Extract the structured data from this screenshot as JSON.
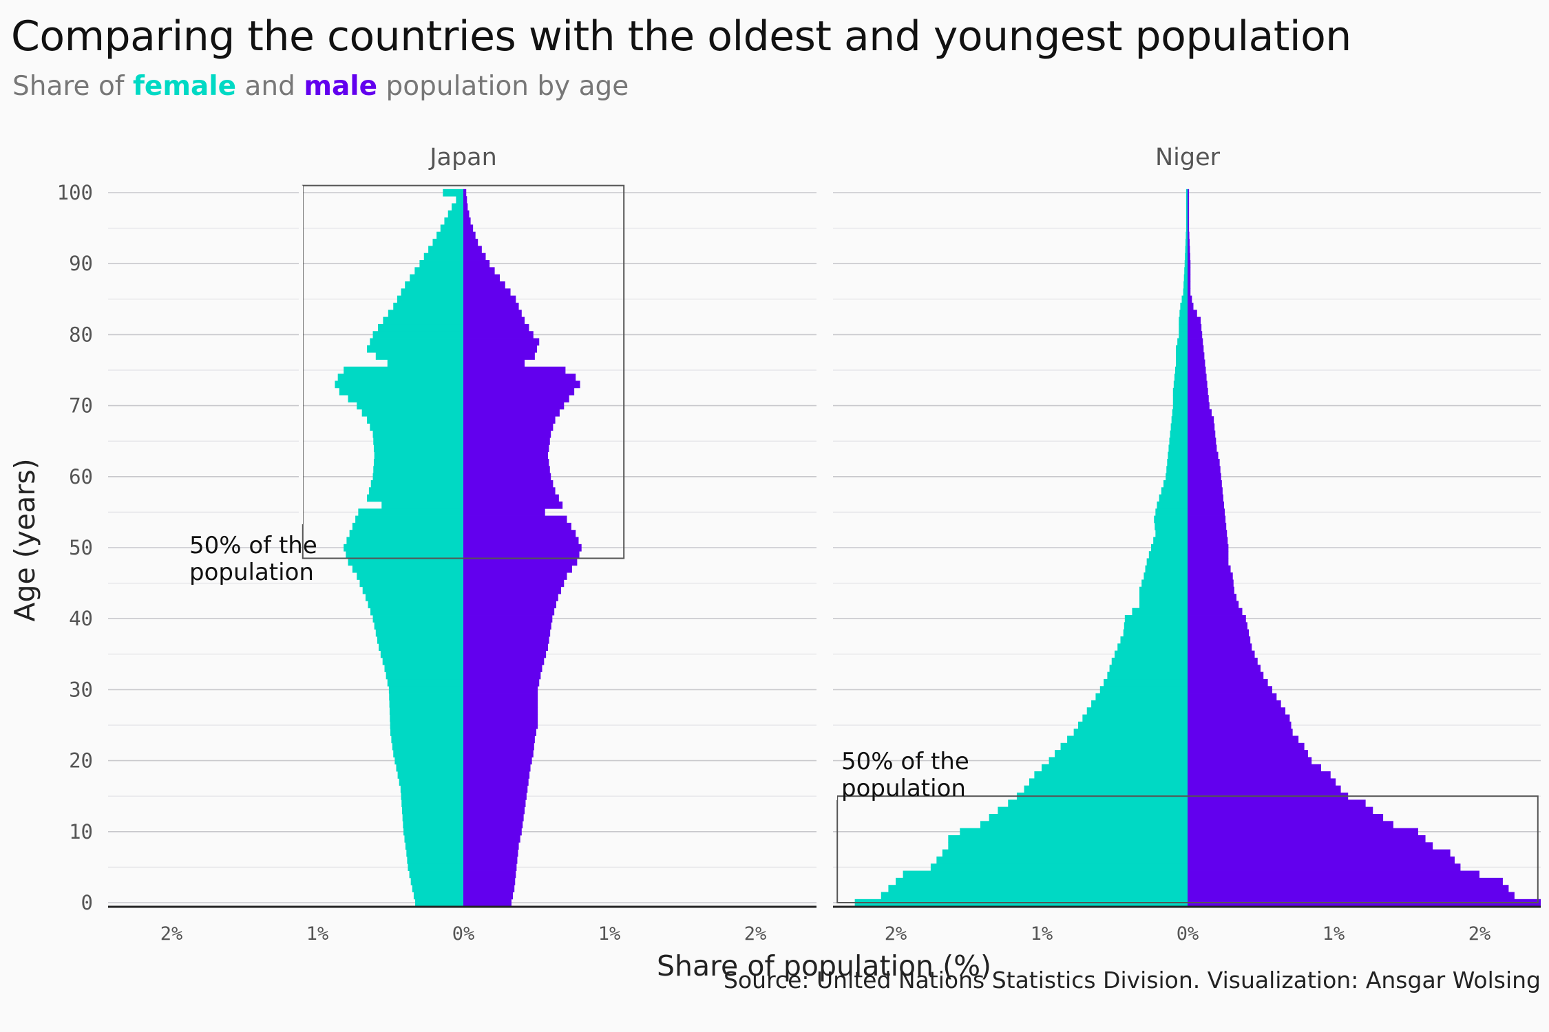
{
  "header": {
    "title": "Comparing the countries with the oldest and youngest population",
    "subtitle_prefix": "Share of ",
    "subtitle_female": "female",
    "subtitle_and": " and ",
    "subtitle_male": "male",
    "subtitle_suffix": " population by age"
  },
  "footer": {
    "source": "Source: United Nations Statistics Division. Visualization: Ansgar Wolsing"
  },
  "colors": {
    "female": "#00D9C4",
    "male": "#6200EE",
    "grid": "#c8c8cc",
    "annotation": "#555555"
  },
  "chart_data": [
    {
      "type": "bar",
      "orientation": "horizontal-pyramid",
      "facet": "Japan",
      "xlabel": "Share of population (%)",
      "ylabel": "Age (years)",
      "xlim": [
        -2.4,
        2.4
      ],
      "ylim": [
        0,
        100
      ],
      "x_ticks": [
        -2,
        -1,
        0,
        1,
        2
      ],
      "x_tick_labels": [
        "2%",
        "1%",
        "0%",
        "1%",
        "2%"
      ],
      "y_ticks": [
        0,
        10,
        20,
        30,
        40,
        50,
        60,
        70,
        80,
        90,
        100
      ],
      "grid": true,
      "annotation": {
        "text_line1": "50% of the",
        "text_line2": "population",
        "age_from": 48.5,
        "age_to": 101,
        "x_from": -1.1,
        "x_to": 1.1
      },
      "female_anchors": [
        [
          0,
          0.33
        ],
        [
          1,
          0.34
        ],
        [
          2,
          0.35
        ],
        [
          3,
          0.36
        ],
        [
          4,
          0.37
        ],
        [
          5,
          0.38
        ],
        [
          7,
          0.39
        ],
        [
          10,
          0.41
        ],
        [
          13,
          0.42
        ],
        [
          16,
          0.43
        ],
        [
          19,
          0.46
        ],
        [
          21,
          0.48
        ],
        [
          24,
          0.5
        ],
        [
          30,
          0.51
        ],
        [
          33,
          0.54
        ],
        [
          36,
          0.58
        ],
        [
          40,
          0.62
        ],
        [
          43,
          0.67
        ],
        [
          46,
          0.73
        ],
        [
          48,
          0.79
        ],
        [
          50,
          0.82
        ],
        [
          52,
          0.78
        ],
        [
          55,
          0.72
        ],
        [
          56,
          0.56
        ],
        [
          57,
          0.66
        ],
        [
          60,
          0.62
        ],
        [
          63,
          0.61
        ],
        [
          66,
          0.62
        ],
        [
          68,
          0.66
        ],
        [
          70,
          0.73
        ],
        [
          72,
          0.85
        ],
        [
          73,
          0.88
        ],
        [
          74,
          0.86
        ],
        [
          75,
          0.82
        ],
        [
          76,
          0.52
        ],
        [
          77,
          0.6
        ],
        [
          78,
          0.66
        ],
        [
          80,
          0.62
        ],
        [
          82,
          0.55
        ],
        [
          84,
          0.48
        ],
        [
          87,
          0.4
        ],
        [
          90,
          0.3
        ],
        [
          93,
          0.21
        ],
        [
          96,
          0.13
        ],
        [
          98,
          0.08
        ],
        [
          99,
          0.05
        ],
        [
          100,
          0.14
        ]
      ],
      "male_anchors": [
        [
          0,
          0.33
        ],
        [
          2,
          0.35
        ],
        [
          4,
          0.36
        ],
        [
          6,
          0.37
        ],
        [
          8,
          0.38
        ],
        [
          10,
          0.4
        ],
        [
          13,
          0.42
        ],
        [
          16,
          0.44
        ],
        [
          19,
          0.46
        ],
        [
          21,
          0.48
        ],
        [
          23,
          0.49
        ],
        [
          25,
          0.51
        ],
        [
          30,
          0.51
        ],
        [
          33,
          0.54
        ],
        [
          36,
          0.58
        ],
        [
          40,
          0.61
        ],
        [
          43,
          0.65
        ],
        [
          46,
          0.71
        ],
        [
          48,
          0.78
        ],
        [
          50,
          0.81
        ],
        [
          52,
          0.77
        ],
        [
          54,
          0.71
        ],
        [
          55,
          0.56
        ],
        [
          56,
          0.68
        ],
        [
          58,
          0.63
        ],
        [
          60,
          0.6
        ],
        [
          63,
          0.58
        ],
        [
          66,
          0.6
        ],
        [
          68,
          0.63
        ],
        [
          70,
          0.69
        ],
        [
          72,
          0.76
        ],
        [
          73,
          0.8
        ],
        [
          74,
          0.77
        ],
        [
          75,
          0.7
        ],
        [
          76,
          0.42
        ],
        [
          77,
          0.49
        ],
        [
          79,
          0.52
        ],
        [
          80,
          0.48
        ],
        [
          82,
          0.42
        ],
        [
          85,
          0.36
        ],
        [
          88,
          0.25
        ],
        [
          90,
          0.18
        ],
        [
          93,
          0.1
        ],
        [
          96,
          0.05
        ],
        [
          98,
          0.03
        ],
        [
          100,
          0.02
        ]
      ]
    },
    {
      "type": "bar",
      "orientation": "horizontal-pyramid",
      "facet": "Niger",
      "xlabel": "Share of population (%)",
      "ylabel": "Age (years)",
      "xlim": [
        -2.4,
        2.4
      ],
      "ylim": [
        0,
        100
      ],
      "x_ticks": [
        -2,
        -1,
        0,
        1,
        2
      ],
      "x_tick_labels": [
        "2%",
        "1%",
        "0%",
        "1%",
        "2%"
      ],
      "y_ticks": [
        0,
        10,
        20,
        30,
        40,
        50,
        60,
        70,
        80,
        90,
        100
      ],
      "grid": true,
      "annotation": {
        "text_line1": "50% of the",
        "text_line2": "population",
        "age_from": 0,
        "age_to": 15,
        "x_from": -2.4,
        "x_to": 2.4
      },
      "female_anchors": [
        [
          0,
          2.28
        ],
        [
          1,
          2.1
        ],
        [
          2,
          2.05
        ],
        [
          3,
          2.0
        ],
        [
          4,
          1.95
        ],
        [
          5,
          1.76
        ],
        [
          6,
          1.72
        ],
        [
          7,
          1.68
        ],
        [
          8,
          1.64
        ],
        [
          9,
          1.64
        ],
        [
          10,
          1.56
        ],
        [
          11,
          1.42
        ],
        [
          12,
          1.36
        ],
        [
          13,
          1.3
        ],
        [
          14,
          1.23
        ],
        [
          15,
          1.17
        ],
        [
          16,
          1.12
        ],
        [
          18,
          1.05
        ],
        [
          20,
          0.95
        ],
        [
          22,
          0.87
        ],
        [
          24,
          0.78
        ],
        [
          26,
          0.72
        ],
        [
          28,
          0.66
        ],
        [
          30,
          0.6
        ],
        [
          32,
          0.55
        ],
        [
          34,
          0.52
        ],
        [
          36,
          0.48
        ],
        [
          38,
          0.44
        ],
        [
          40,
          0.43
        ],
        [
          42,
          0.33
        ],
        [
          44,
          0.33
        ],
        [
          46,
          0.3
        ],
        [
          48,
          0.28
        ],
        [
          50,
          0.25
        ],
        [
          52,
          0.22
        ],
        [
          54,
          0.23
        ],
        [
          56,
          0.21
        ],
        [
          58,
          0.18
        ],
        [
          60,
          0.15
        ],
        [
          62,
          0.14
        ],
        [
          64,
          0.13
        ],
        [
          66,
          0.12
        ],
        [
          68,
          0.11
        ],
        [
          70,
          0.1
        ],
        [
          72,
          0.1
        ],
        [
          74,
          0.09
        ],
        [
          76,
          0.08
        ],
        [
          78,
          0.08
        ],
        [
          80,
          0.06
        ],
        [
          82,
          0.06
        ],
        [
          84,
          0.05
        ],
        [
          86,
          0.03
        ],
        [
          90,
          0.02
        ],
        [
          95,
          0.01
        ],
        [
          97,
          0.01
        ]
      ],
      "male_anchors": [
        [
          0,
          2.42
        ],
        [
          1,
          2.24
        ],
        [
          2,
          2.2
        ],
        [
          3,
          2.16
        ],
        [
          4,
          2.0
        ],
        [
          5,
          1.87
        ],
        [
          6,
          1.83
        ],
        [
          7,
          1.8
        ],
        [
          8,
          1.68
        ],
        [
          9,
          1.63
        ],
        [
          10,
          1.58
        ],
        [
          11,
          1.41
        ],
        [
          12,
          1.34
        ],
        [
          13,
          1.27
        ],
        [
          14,
          1.22
        ],
        [
          15,
          1.1
        ],
        [
          16,
          1.05
        ],
        [
          18,
          0.98
        ],
        [
          20,
          0.85
        ],
        [
          22,
          0.8
        ],
        [
          24,
          0.72
        ],
        [
          26,
          0.7
        ],
        [
          28,
          0.64
        ],
        [
          30,
          0.58
        ],
        [
          32,
          0.52
        ],
        [
          34,
          0.48
        ],
        [
          36,
          0.44
        ],
        [
          38,
          0.42
        ],
        [
          40,
          0.4
        ],
        [
          42,
          0.35
        ],
        [
          44,
          0.32
        ],
        [
          46,
          0.31
        ],
        [
          48,
          0.28
        ],
        [
          50,
          0.28
        ],
        [
          52,
          0.27
        ],
        [
          54,
          0.26
        ],
        [
          56,
          0.25
        ],
        [
          58,
          0.24
        ],
        [
          60,
          0.23
        ],
        [
          62,
          0.22
        ],
        [
          64,
          0.2
        ],
        [
          66,
          0.19
        ],
        [
          68,
          0.18
        ],
        [
          70,
          0.15
        ],
        [
          72,
          0.14
        ],
        [
          74,
          0.13
        ],
        [
          76,
          0.12
        ],
        [
          78,
          0.11
        ],
        [
          80,
          0.1
        ],
        [
          82,
          0.09
        ],
        [
          84,
          0.04
        ],
        [
          86,
          0.02
        ],
        [
          90,
          0.02
        ],
        [
          95,
          0.01
        ],
        [
          97,
          0.01
        ]
      ]
    }
  ]
}
